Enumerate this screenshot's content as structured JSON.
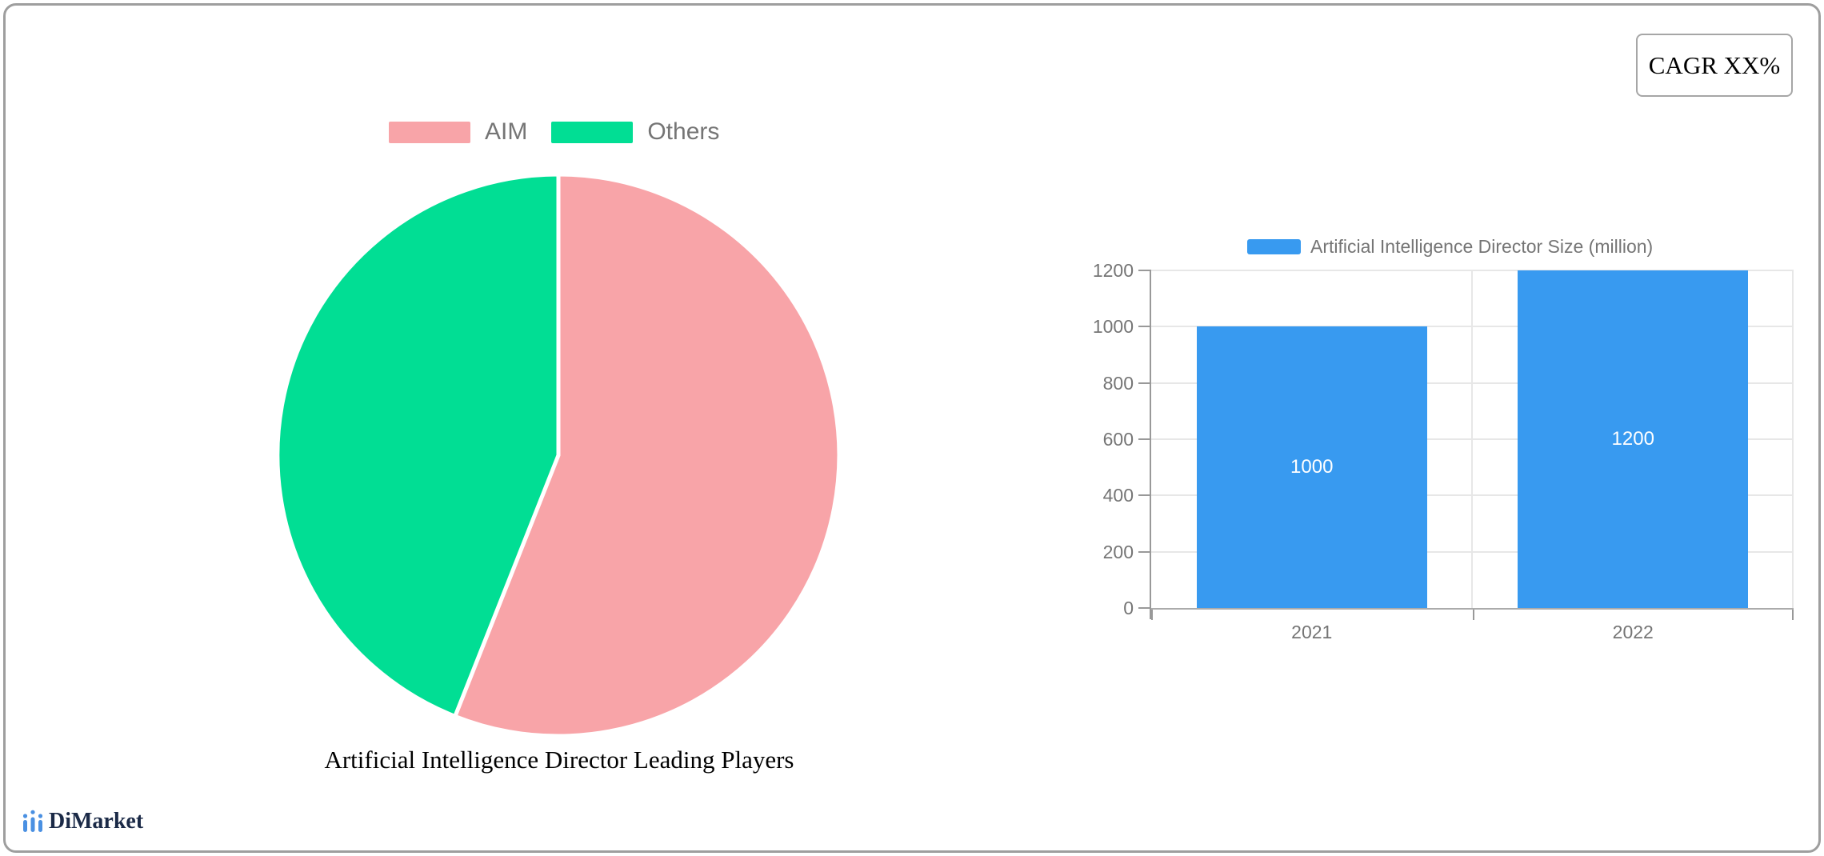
{
  "cagr": {
    "label": "CAGR XX%"
  },
  "brand": {
    "name": "DiMarket"
  },
  "colors": {
    "pie_aim": "#F8A4A8",
    "pie_others": "#01DE94",
    "bar_fill": "#389AF0",
    "brand_blue": "#4A90E2",
    "brand_navy": "#1B2A47",
    "text_gray": "#757575",
    "axis_gray": "#999999",
    "gridline_gray": "#E7E7E7",
    "border_gray": "#9E9E9E"
  },
  "chart_data": [
    {
      "type": "pie",
      "title": "Artificial Intelligence Director Leading Players",
      "labels": [
        "AIM",
        "Others"
      ],
      "values": [
        56,
        44
      ],
      "colors": [
        "#F8A4A8",
        "#01DE94"
      ],
      "legend_position": "top",
      "start_angle_deg": 0,
      "direction": "clockwise"
    },
    {
      "type": "bar",
      "categories": [
        "2021",
        "2022"
      ],
      "series": [
        {
          "name": "Artificial Intelligence Director Size (million)",
          "values": [
            1000,
            1200
          ]
        }
      ],
      "data_labels": [
        "1000",
        "1200"
      ],
      "xlabel": "",
      "ylabel": "",
      "ylim": [
        0,
        1200
      ],
      "yticks": [
        0,
        200,
        400,
        600,
        800,
        1000,
        1200
      ],
      "bar_color": "#389AF0",
      "grid": true,
      "legend_position": "top"
    }
  ]
}
